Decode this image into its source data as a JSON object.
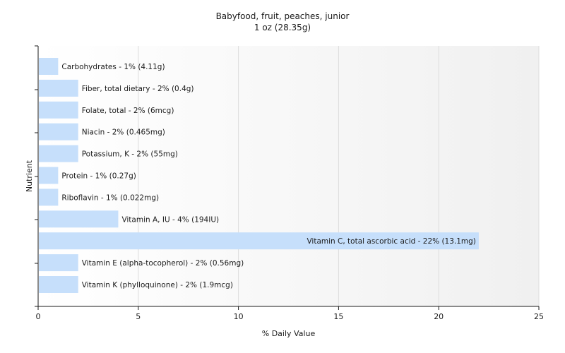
{
  "chart_data": {
    "type": "bar",
    "orientation": "horizontal",
    "title": "Babyfood, fruit, peaches, junior",
    "subtitle": "1 oz (28.35g)",
    "xlabel": "% Daily Value",
    "ylabel": "Nutrient",
    "xlim": [
      0,
      25
    ],
    "xticks": [
      0,
      5,
      10,
      15,
      20,
      25
    ],
    "grid": true,
    "bar_color": "#c6dffb",
    "categories": [
      "Carbohydrates",
      "Fiber, total dietary",
      "Folate, total",
      "Niacin",
      "Potassium, K",
      "Protein",
      "Riboflavin",
      "Vitamin A, IU",
      "Vitamin C, total ascorbic acid",
      "Vitamin E (alpha-tocopherol)",
      "Vitamin K (phylloquinone)"
    ],
    "values": [
      1,
      2,
      2,
      2,
      2,
      1,
      1,
      4,
      22,
      2,
      2
    ],
    "labels": [
      "Carbohydrates - 1% (4.11g)",
      "Fiber, total dietary - 2% (0.4g)",
      "Folate, total - 2% (6mcg)",
      "Niacin - 2% (0.465mg)",
      "Potassium, K - 2% (55mg)",
      "Protein - 1% (0.27g)",
      "Riboflavin - 1% (0.022mg)",
      "Vitamin A, IU - 4% (194IU)",
      "Vitamin C, total ascorbic acid - 22% (13.1mg)",
      "Vitamin E (alpha-tocopherol) - 2% (0.56mg)",
      "Vitamin K (phylloquinone) - 2% (1.9mcg)"
    ]
  }
}
